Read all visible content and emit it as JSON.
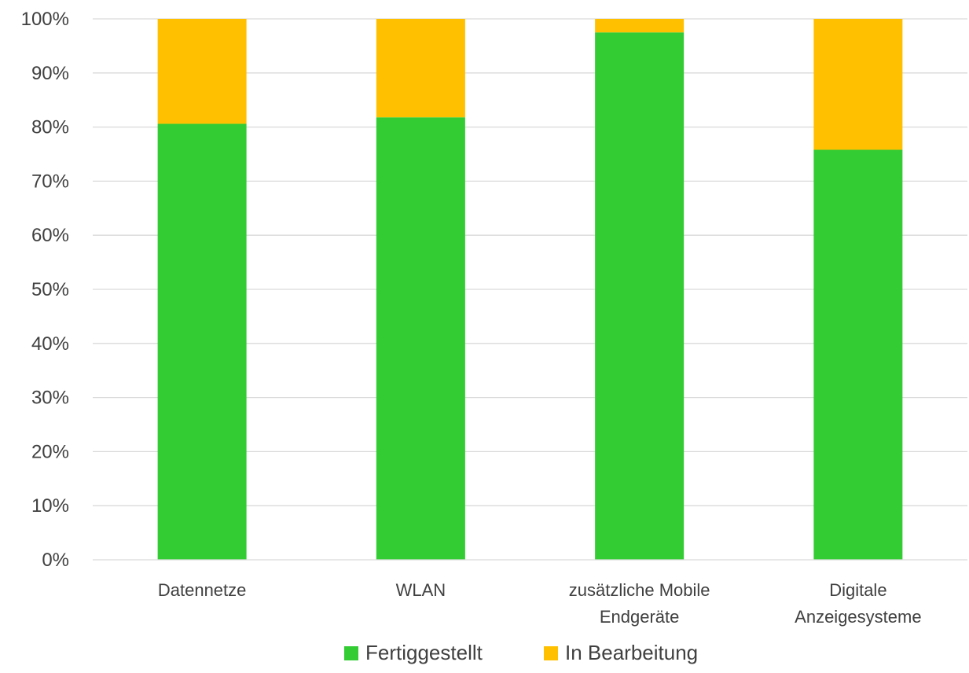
{
  "chart_data": {
    "type": "bar",
    "stacked": true,
    "percent_stacked": true,
    "title": "",
    "xlabel": "",
    "ylabel": "",
    "ylim": [
      0,
      100
    ],
    "y_ticks": [
      "0%",
      "10%",
      "20%",
      "30%",
      "40%",
      "50%",
      "60%",
      "70%",
      "80%",
      "90%",
      "100%"
    ],
    "y_tick_values": [
      0,
      10,
      20,
      30,
      40,
      50,
      60,
      70,
      80,
      90,
      100
    ],
    "grid": "horizontal",
    "legend_position": "bottom",
    "categories": [
      [
        "Datennetze"
      ],
      [
        "WLAN"
      ],
      [
        "zusätzliche Mobile",
        "Endgeräte"
      ],
      [
        "Digitale",
        "Anzeigesysteme"
      ]
    ],
    "series": [
      {
        "name": "Fertiggestellt",
        "color": "#33cc33",
        "values": [
          80.6,
          81.8,
          97.5,
          75.8
        ]
      },
      {
        "name": "In Bearbeitung",
        "color": "#ffc000",
        "values": [
          19.4,
          18.2,
          2.5,
          24.2
        ]
      }
    ]
  }
}
